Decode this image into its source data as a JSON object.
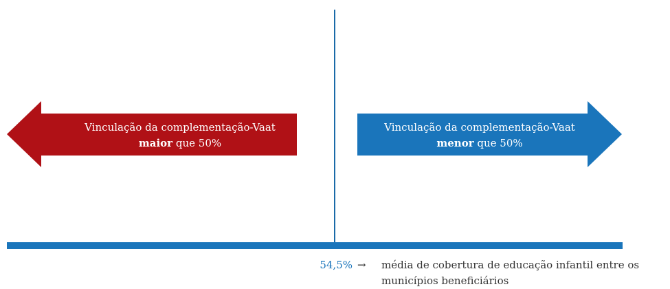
{
  "left_arrow": {
    "line1": "Vinculação da complementação-Vaat",
    "bold": "maior",
    "rest": " que 50%"
  },
  "right_arrow": {
    "line1": "Vinculação da complementação-Vaat",
    "bold": "menor",
    "rest": " que 50%"
  },
  "note": {
    "value": "54,5%",
    "arrow": "→",
    "line1": "média de cobertura de educação infantil entre os",
    "line2": "municípios beneficiários"
  }
}
